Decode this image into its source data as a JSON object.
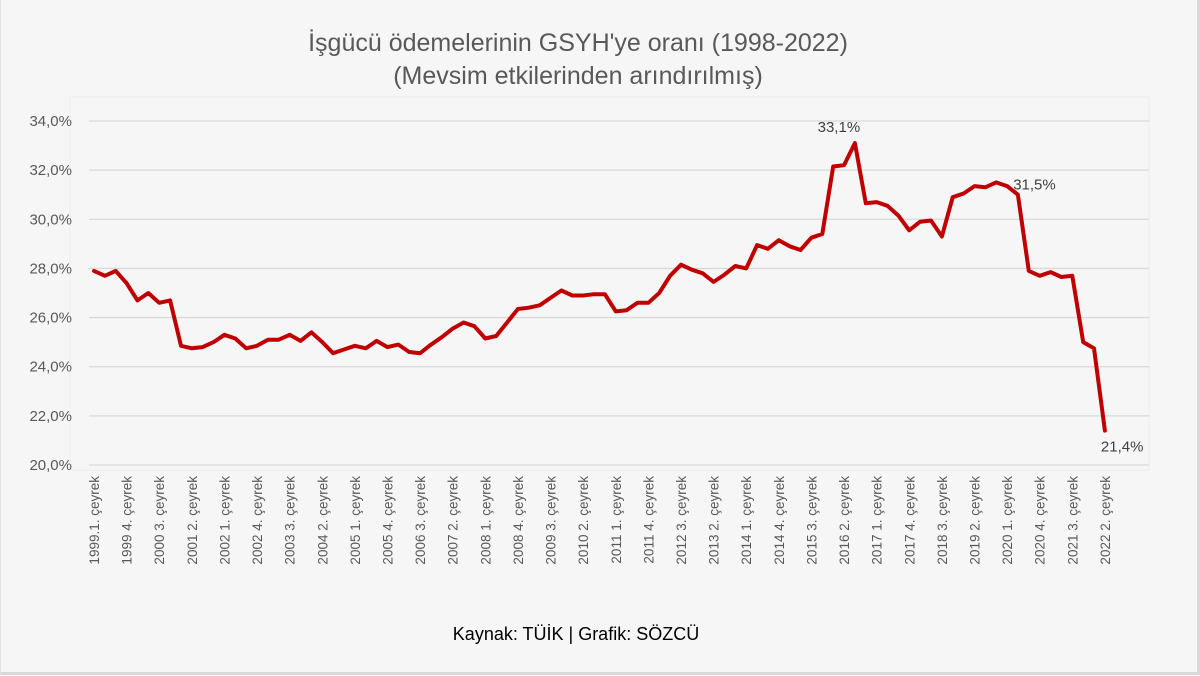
{
  "chart_data": {
    "type": "line",
    "title": "İşgücü ödemelerinin GSYH'ye oranı (1998-2022)",
    "subtitle": "(Mevsim etkilerinden arındırılmış)",
    "xlabel": "",
    "ylabel": "",
    "ylim": [
      20,
      34
    ],
    "yticks": [
      20,
      22,
      24,
      26,
      28,
      30,
      32,
      34
    ],
    "ytick_labels": [
      "20,0%",
      "22,0%",
      "24,0%",
      "26,0%",
      "28,0%",
      "30,0%",
      "32,0%",
      "34,0%"
    ],
    "grid": true,
    "line_color": "#c00000",
    "x_labels": [
      "1999.1. çeyrek",
      "1999 4. çeyrek",
      "2000 3. çeyrek",
      "2001 2. çeyrek",
      "2002 1. çeyrek",
      "2002 4. çeyrek",
      "2003 3. çeyrek",
      "2004 2. çeyrek",
      "2005 1. çeyrek",
      "2005 4. çeyrek",
      "2006 3. çeyrek",
      "2007 2. çeyrek",
      "2008 1. çeyrek",
      "2008 4. çeyrek",
      "2009 3. çeyrek",
      "2010 2. çeyrek",
      "2011 1. çeyrek",
      "2011 4. çeyrek",
      "2012 3. çeyrek",
      "2013 2. çeyrek",
      "2014 1. çeyrek",
      "2014 4. çeyrek",
      "2015 3. çeyrek",
      "2016 2. çeyrek",
      "2017 1. çeyrek",
      "2017 4. çeyrek",
      "2018 3. çeyrek",
      "2019 2. çeyrek",
      "2020 1. çeyrek",
      "2020 4. çeyrek",
      "2021 3. çeyrek",
      "2022 2. çeyrek"
    ],
    "x_label_every": 3,
    "series": [
      {
        "name": "İşgücü ödemelerinin GSYH'ye oranı",
        "start": "1999 1. çeyrek",
        "end": "2022 2. çeyrek",
        "values": [
          27.9,
          27.7,
          27.9,
          27.4,
          26.7,
          27.0,
          26.6,
          26.7,
          24.85,
          24.75,
          24.8,
          25.0,
          25.3,
          25.15,
          24.75,
          24.85,
          25.1,
          25.1,
          25.3,
          25.05,
          25.4,
          25.0,
          24.55,
          24.7,
          24.85,
          24.75,
          25.05,
          24.8,
          24.9,
          24.6,
          24.55,
          24.9,
          25.2,
          25.55,
          25.8,
          25.65,
          25.15,
          25.25,
          25.8,
          26.35,
          26.4,
          26.5,
          26.8,
          27.1,
          26.9,
          26.9,
          26.95,
          26.95,
          26.25,
          26.3,
          26.6,
          26.6,
          27.0,
          27.7,
          28.15,
          27.95,
          27.8,
          27.45,
          27.75,
          28.1,
          28.0,
          28.95,
          28.8,
          29.15,
          28.9,
          28.75,
          29.25,
          29.4,
          32.15,
          32.2,
          33.1,
          30.65,
          30.7,
          30.55,
          30.15,
          29.55,
          29.9,
          29.95,
          29.3,
          30.9,
          31.05,
          31.35,
          31.3,
          31.5,
          31.35,
          31.0,
          27.9,
          27.7,
          27.85,
          27.65,
          27.7,
          25.0,
          24.75,
          21.4
        ]
      }
    ],
    "annotations": [
      {
        "index": 70,
        "text": "33,1%",
        "position": "above"
      },
      {
        "index": 83,
        "text": "31,5%",
        "position": "right"
      },
      {
        "index": 93,
        "text": "21,4%",
        "position": "below"
      }
    ]
  },
  "footer": {
    "source": "Kaynak: TÜİK | Grafik: SÖZCÜ"
  }
}
